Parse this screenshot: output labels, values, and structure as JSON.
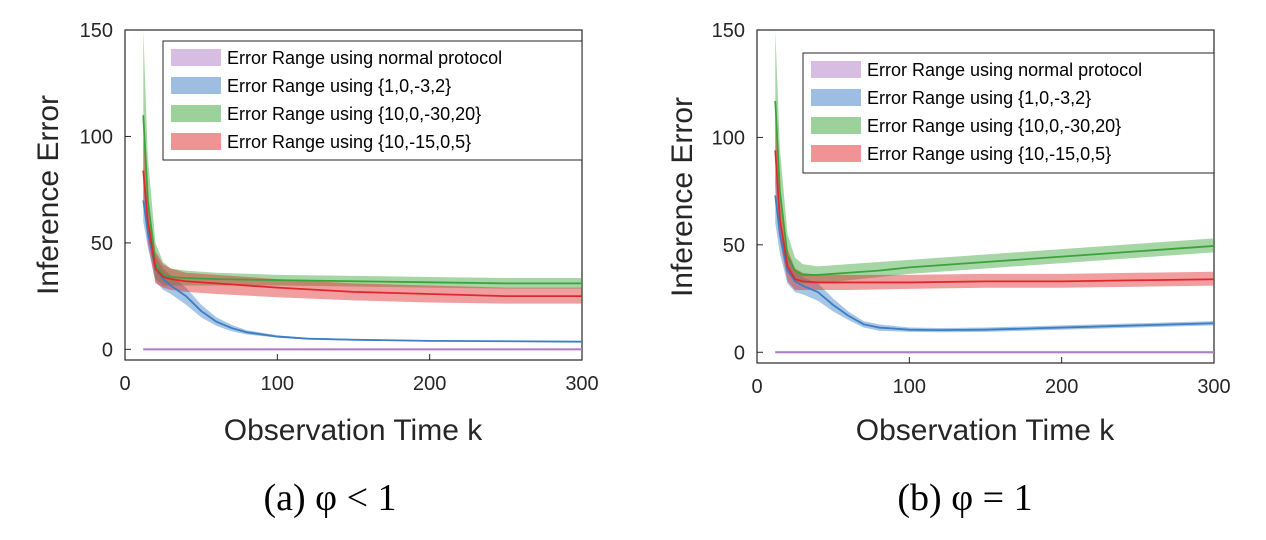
{
  "chart_data": [
    {
      "type": "line",
      "caption": "(a) φ < 1",
      "xlabel": "Observation Time k",
      "ylabel": "Inference Error",
      "xlim": [
        0,
        300
      ],
      "ylim": [
        -5,
        150
      ],
      "xticks": [
        "0",
        "100",
        "200",
        "300"
      ],
      "yticks": [
        "0",
        "50",
        "100",
        "150"
      ],
      "grid": false,
      "legend_position": "top-right",
      "series": [
        {
          "name": "Error Range using normal protocol",
          "color": "#b07cc6",
          "x": [
            12,
            300
          ],
          "mean": [
            0,
            0
          ],
          "lower": [
            -0.5,
            -0.5
          ],
          "upper": [
            0.5,
            0.5
          ]
        },
        {
          "name": "Error Range using {1,0,-3,2}",
          "color": "#3b7ec4",
          "x": [
            12,
            15,
            20,
            25,
            30,
            40,
            50,
            60,
            70,
            80,
            100,
            120,
            150,
            200,
            250,
            300
          ],
          "mean": [
            70,
            55,
            38,
            33,
            30,
            25,
            18,
            13,
            10,
            8,
            6,
            5,
            4.5,
            4,
            3.8,
            3.6
          ],
          "lower": [
            60,
            48,
            32,
            28,
            26,
            21,
            15,
            11,
            8.5,
            7,
            5.5,
            4.6,
            4.1,
            3.7,
            3.5,
            3.3
          ],
          "upper": [
            80,
            62,
            44,
            38,
            35,
            29,
            21,
            15,
            11.5,
            9,
            6.6,
            5.4,
            4.9,
            4.3,
            4.1,
            3.9
          ]
        },
        {
          "name": "Error Range using {10,0,-30,20}",
          "color": "#3aa43a",
          "x": [
            12,
            15,
            20,
            25,
            30,
            40,
            60,
            100,
            150,
            200,
            250,
            300
          ],
          "mean": [
            110,
            70,
            40,
            35,
            34,
            33.5,
            33,
            32.5,
            32,
            31.5,
            31,
            31
          ],
          "lower": [
            80,
            55,
            33,
            30,
            30,
            30,
            30,
            30,
            29.5,
            29,
            28.5,
            28.5
          ],
          "upper": [
            150,
            90,
            50,
            41,
            38,
            37,
            36,
            35,
            34.5,
            34,
            33.5,
            33.5
          ]
        },
        {
          "name": "Error Range using {10,-15,0,5}",
          "color": "#e0282c",
          "x": [
            12,
            15,
            20,
            25,
            30,
            40,
            60,
            100,
            150,
            200,
            250,
            300
          ],
          "mean": [
            84,
            60,
            38,
            34,
            33,
            32,
            31,
            29,
            27,
            26,
            25,
            25
          ],
          "lower": [
            70,
            50,
            31,
            29,
            28,
            27,
            26,
            24.5,
            23,
            22,
            21.5,
            21.5
          ],
          "upper": [
            100,
            72,
            46,
            40,
            38,
            36,
            35,
            33,
            31,
            30,
            29,
            29
          ]
        }
      ]
    },
    {
      "type": "line",
      "caption": "(b) φ = 1",
      "xlabel": "Observation Time k",
      "ylabel": "Inference Error",
      "xlim": [
        0,
        300
      ],
      "ylim": [
        -5,
        150
      ],
      "xticks": [
        "0",
        "100",
        "200",
        "300"
      ],
      "yticks": [
        "0",
        "50",
        "100",
        "150"
      ],
      "grid": false,
      "legend_position": "top-right",
      "series": [
        {
          "name": "Error Range using normal protocol",
          "color": "#b07cc6",
          "x": [
            12,
            300
          ],
          "mean": [
            0,
            0
          ],
          "lower": [
            -0.5,
            -0.5
          ],
          "upper": [
            0.5,
            0.5
          ]
        },
        {
          "name": "Error Range using {1,0,-3,2}",
          "color": "#3b7ec4",
          "x": [
            12,
            15,
            20,
            25,
            30,
            40,
            50,
            60,
            70,
            80,
            100,
            120,
            150,
            200,
            250,
            300
          ],
          "mean": [
            73,
            55,
            38,
            33,
            31,
            28,
            22,
            17,
            13,
            11.5,
            10.5,
            10.3,
            10.5,
            11.5,
            12.5,
            13.5
          ],
          "lower": [
            60,
            46,
            32,
            28,
            27,
            24,
            19,
            15,
            11.5,
            10,
            9.5,
            9.3,
            9.5,
            10.5,
            11.5,
            12.5
          ],
          "upper": [
            85,
            64,
            44,
            38,
            35,
            32,
            25,
            19,
            14.5,
            13,
            11.5,
            11.3,
            11.5,
            12.5,
            13.5,
            14.5
          ]
        },
        {
          "name": "Error Range using {10,0,-30,20}",
          "color": "#3aa43a",
          "x": [
            12,
            15,
            20,
            25,
            30,
            40,
            60,
            80,
            100,
            150,
            200,
            250,
            300
          ],
          "mean": [
            117,
            75,
            45,
            38,
            36,
            36,
            37,
            38,
            39.5,
            42,
            44.5,
            47,
            49.5
          ],
          "lower": [
            90,
            60,
            38,
            33,
            32,
            32,
            33.5,
            35,
            36.5,
            39,
            41.5,
            44,
            46.5
          ],
          "upper": [
            150,
            95,
            55,
            44,
            41,
            40,
            41,
            42,
            43,
            45.5,
            48,
            50.5,
            53
          ]
        },
        {
          "name": "Error Range using {10,-15,0,5}",
          "color": "#e0282c",
          "x": [
            12,
            15,
            20,
            25,
            30,
            40,
            60,
            100,
            150,
            200,
            250,
            300
          ],
          "mean": [
            94,
            62,
            40,
            34,
            33,
            32.5,
            32.5,
            32.5,
            33,
            33,
            33.5,
            34
          ],
          "lower": [
            78,
            52,
            33,
            29,
            29,
            29,
            29,
            29.5,
            30,
            30,
            30.5,
            31
          ],
          "upper": [
            110,
            74,
            48,
            39,
            37,
            36,
            36,
            36,
            36.5,
            36.5,
            37,
            37.5
          ]
        }
      ]
    }
  ]
}
